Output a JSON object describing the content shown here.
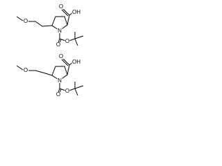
{
  "molecules": [
    {
      "atoms": [
        "O",
        "OH",
        "O",
        "N",
        "O",
        "O"
      ]
    },
    {
      "atoms": [
        "O",
        "OH",
        "O",
        "N",
        "O",
        "O"
      ]
    }
  ]
}
